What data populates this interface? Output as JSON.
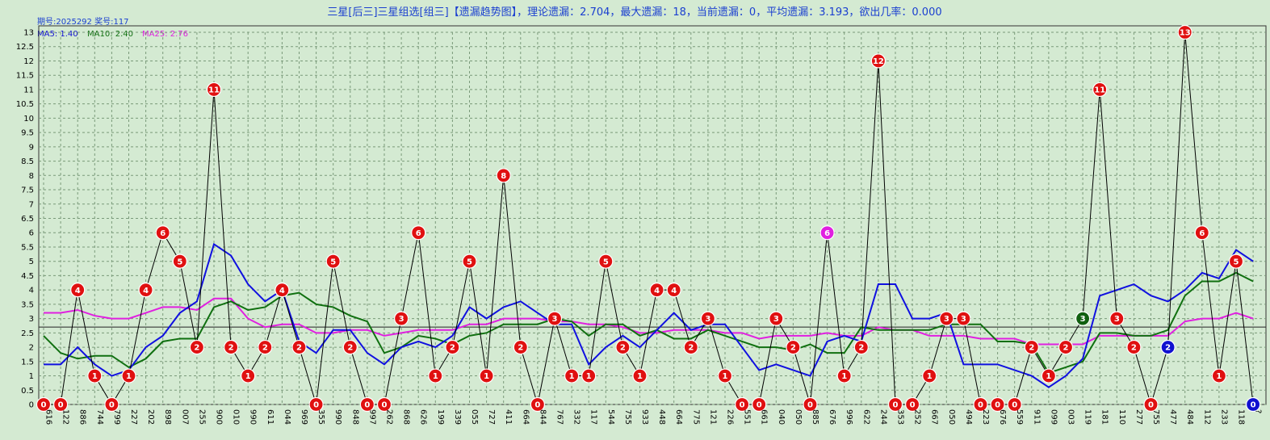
{
  "header": {
    "title": "三星[后三]三星组选[组三]【遗漏趋势图】，理论遗漏：2.704，最大遗漏：18，当前遗漏：0，平均遗漏：3.193，欲出几率：0.000",
    "issue": "期号:2025292 奖号:117"
  },
  "ma_legend": [
    {
      "text": "MA5: 1.40",
      "color": "#1010d0"
    },
    {
      "text": "MA10: 2.40",
      "color": "#107010"
    },
    {
      "text": "MA25: 2.76",
      "color": "#e020e0"
    }
  ],
  "chart_data": {
    "type": "line",
    "x": [
      "616",
      "122",
      "886",
      "744",
      "799",
      "227",
      "202",
      "898",
      "007",
      "255",
      "900",
      "010",
      "990",
      "611",
      "044",
      "969",
      "355",
      "990",
      "848",
      "997",
      "262",
      "868",
      "626",
      "199",
      "339",
      "055",
      "727",
      "411",
      "664",
      "844",
      "767",
      "332",
      "117",
      "544",
      "755",
      "933",
      "448",
      "664",
      "775",
      "121",
      "226",
      "551",
      "661",
      "040",
      "050",
      "885",
      "676",
      "996",
      "622",
      "244",
      "353",
      "252",
      "667",
      "050",
      "494",
      "223",
      "676",
      "559",
      "911",
      "099",
      "003",
      "119",
      "181",
      "110",
      "277",
      "755",
      "477",
      "484",
      "112",
      "233",
      "118",
      "?"
    ],
    "ylim": [
      0,
      13.5
    ],
    "yticks": [
      "0",
      "0.5",
      "1",
      "1.5",
      "2",
      "2.5",
      "3",
      "3.5",
      "4",
      "4.5",
      "5",
      "5.5",
      "6",
      "6.5",
      "7",
      "7.5",
      "8",
      "8.5",
      "9",
      "9.5",
      "10",
      "10.5",
      "11",
      "11.5",
      "12",
      "12.5",
      "13"
    ],
    "reference_line": 2.704,
    "series": [
      {
        "name": "遗漏",
        "color": "#000000",
        "values": [
          0,
          0,
          4,
          1,
          0,
          1,
          4,
          6,
          5,
          2,
          11,
          2,
          1,
          2,
          4,
          2,
          0,
          5,
          2,
          0,
          0,
          3,
          6,
          1,
          2,
          5,
          1,
          8,
          2,
          0,
          3,
          1,
          1,
          5,
          2,
          1,
          4,
          4,
          2,
          3,
          1,
          0,
          0,
          3,
          2,
          0,
          6,
          1,
          2,
          12,
          0,
          0,
          1,
          3,
          3,
          0,
          0,
          0,
          2,
          1,
          2,
          3,
          11,
          3,
          2,
          0,
          2,
          13,
          6,
          1,
          5,
          0
        ]
      },
      {
        "name": "MA5",
        "color": "#1010e0",
        "values": [
          1.4,
          1.4,
          2.0,
          1.4,
          1.0,
          1.2,
          2.0,
          2.4,
          3.2,
          3.6,
          5.6,
          5.2,
          4.2,
          3.6,
          4.0,
          2.2,
          1.8,
          2.6,
          2.6,
          1.8,
          1.4,
          2.0,
          2.2,
          2.0,
          2.4,
          3.4,
          3.0,
          3.4,
          3.6,
          3.2,
          2.8,
          2.8,
          1.4,
          2.0,
          2.4,
          2.0,
          2.6,
          3.2,
          2.6,
          2.8,
          2.8,
          2.0,
          1.2,
          1.4,
          1.2,
          1.0,
          2.2,
          2.4,
          2.2,
          4.2,
          4.2,
          3.0,
          3.0,
          3.2,
          1.4,
          1.4,
          1.4,
          1.2,
          1.0,
          0.6,
          1.0,
          1.6,
          3.8,
          4.0,
          4.2,
          3.8,
          3.6,
          4.0,
          4.6,
          4.4,
          5.4,
          5.0
        ]
      },
      {
        "name": "MA10",
        "color": "#107010",
        "values": [
          2.4,
          1.8,
          1.6,
          1.7,
          1.7,
          1.3,
          1.6,
          2.2,
          2.3,
          2.3,
          3.4,
          3.6,
          3.3,
          3.4,
          3.8,
          3.9,
          3.5,
          3.4,
          3.1,
          2.9,
          1.8,
          2.0,
          2.4,
          2.3,
          2.1,
          2.4,
          2.5,
          2.8,
          2.8,
          2.8,
          3.0,
          2.9,
          2.4,
          2.8,
          2.8,
          2.4,
          2.6,
          2.3,
          2.3,
          2.6,
          2.4,
          2.2,
          2.0,
          2.0,
          1.9,
          2.1,
          1.8,
          1.8,
          2.7,
          2.6,
          2.6,
          2.6,
          2.6,
          2.8,
          2.8,
          2.8,
          2.2,
          2.2,
          2.1,
          1.1,
          1.3,
          1.5,
          2.5,
          2.5,
          2.4,
          2.4,
          2.6,
          3.8,
          4.3,
          4.3,
          4.6,
          4.3
        ]
      },
      {
        "name": "MA25",
        "color": "#e020e0",
        "values": [
          3.2,
          3.2,
          3.3,
          3.1,
          3.0,
          3.0,
          3.2,
          3.4,
          3.4,
          3.3,
          3.7,
          3.7,
          3.0,
          2.7,
          2.8,
          2.8,
          2.5,
          2.5,
          2.6,
          2.6,
          2.4,
          2.5,
          2.6,
          2.6,
          2.6,
          2.8,
          2.8,
          3.0,
          3.0,
          3.0,
          2.9,
          2.9,
          2.8,
          2.8,
          2.7,
          2.5,
          2.5,
          2.6,
          2.6,
          2.6,
          2.5,
          2.5,
          2.3,
          2.4,
          2.4,
          2.4,
          2.5,
          2.4,
          2.4,
          2.7,
          2.6,
          2.6,
          2.4,
          2.4,
          2.4,
          2.3,
          2.3,
          2.3,
          2.1,
          2.1,
          2.1,
          2.1,
          2.4,
          2.4,
          2.4,
          2.4,
          2.4,
          2.9,
          3.0,
          3.0,
          3.2,
          3.0
        ]
      }
    ],
    "marker_colors": {
      "default": "#e01010",
      "magenta": "#e020e0",
      "green": "#106010",
      "blue": "#1010d0"
    },
    "marker_color_overrides": {
      "46": "magenta",
      "61": "green",
      "66": "blue",
      "71": "blue"
    }
  }
}
